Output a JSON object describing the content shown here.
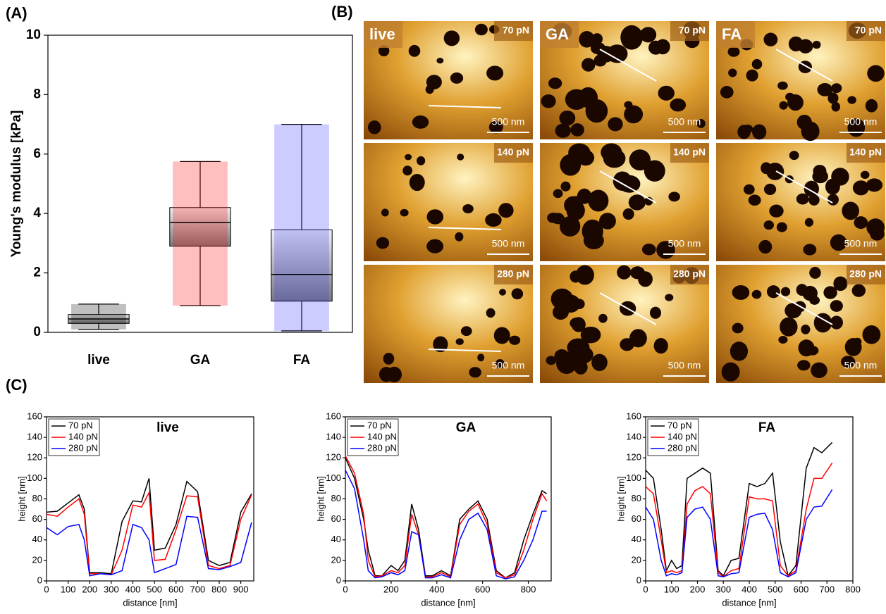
{
  "panel_labels": [
    "(A)",
    "(B)",
    "(C)"
  ],
  "images": {
    "columns": [
      "live",
      "GA",
      "FA"
    ],
    "forces": [
      "70 pN",
      "140 pN",
      "280 pN"
    ],
    "scale_bar": "500 nm"
  },
  "chart_data": [
    {
      "type": "box",
      "ylabel": "Young's modulus [kPa]",
      "categories": [
        "live",
        "GA",
        "FA"
      ],
      "boxes": [
        {
          "whisker_low": 0.1,
          "q1": 0.3,
          "median": 0.45,
          "q3": 0.6,
          "whisker_high": 0.95,
          "color": "#000000"
        },
        {
          "whisker_low": 0.9,
          "q1": 2.9,
          "median": 3.7,
          "q3": 4.2,
          "whisker_high": 5.75,
          "color": "#ff0000"
        },
        {
          "whisker_low": 0.05,
          "q1": 1.05,
          "median": 1.95,
          "q3": 3.45,
          "whisker_high": 7.0,
          "color": "#3333ff"
        }
      ],
      "ylim": [
        0,
        10
      ],
      "yticks": [
        0,
        2,
        4,
        6,
        8,
        10
      ]
    },
    {
      "type": "line",
      "title": "live",
      "xlabel": "distance [nm]",
      "ylabel": "height [nm]",
      "x": [
        0,
        50,
        100,
        150,
        175,
        200,
        250,
        300,
        350,
        400,
        440,
        475,
        500,
        550,
        600,
        650,
        700,
        750,
        800,
        850,
        900,
        950
      ],
      "series": [
        {
          "name": "70 pN",
          "color": "#000000",
          "values": [
            67,
            68,
            76,
            84,
            70,
            8,
            8,
            7,
            58,
            78,
            77,
            100,
            30,
            32,
            55,
            97,
            87,
            20,
            15,
            18,
            67,
            85
          ]
        },
        {
          "name": "140 pN",
          "color": "#ff0000",
          "values": [
            65,
            63,
            72,
            80,
            65,
            7,
            7,
            6,
            30,
            74,
            72,
            86,
            20,
            21,
            50,
            83,
            82,
            15,
            12,
            15,
            60,
            84
          ]
        },
        {
          "name": "280 pN",
          "color": "#0000ff",
          "values": [
            52,
            45,
            53,
            55,
            40,
            5,
            7,
            6,
            10,
            55,
            52,
            40,
            8,
            12,
            16,
            63,
            62,
            12,
            11,
            14,
            18,
            57
          ]
        }
      ],
      "xlim": [
        0,
        960
      ],
      "xticks": [
        0,
        100,
        200,
        300,
        400,
        500,
        600,
        700,
        800,
        900
      ],
      "ylim": [
        0,
        160
      ],
      "yticks": [
        0,
        20,
        40,
        60,
        80,
        100,
        120,
        140,
        160
      ]
    },
    {
      "type": "line",
      "title": "GA",
      "xlabel": "distance [nm]",
      "ylabel": "height [nm]",
      "x": [
        0,
        40,
        80,
        100,
        130,
        160,
        200,
        230,
        260,
        290,
        320,
        350,
        380,
        420,
        460,
        500,
        540,
        580,
        620,
        660,
        700,
        740,
        780,
        820,
        860,
        880
      ],
      "series": [
        {
          "name": "70 pN",
          "color": "#000000",
          "values": [
            120,
            100,
            60,
            30,
            5,
            5,
            15,
            10,
            20,
            75,
            50,
            5,
            5,
            10,
            5,
            60,
            70,
            78,
            60,
            10,
            3,
            8,
            40,
            65,
            88,
            85
          ]
        },
        {
          "name": "140 pN",
          "color": "#ff0000",
          "values": [
            122,
            105,
            65,
            20,
            4,
            5,
            10,
            8,
            15,
            65,
            45,
            4,
            4,
            8,
            4,
            55,
            68,
            75,
            55,
            8,
            3,
            6,
            30,
            60,
            85,
            78
          ]
        },
        {
          "name": "280 pN",
          "color": "#0000ff",
          "values": [
            108,
            90,
            40,
            10,
            3,
            4,
            8,
            6,
            10,
            48,
            45,
            3,
            3,
            6,
            3,
            40,
            60,
            66,
            50,
            5,
            2,
            4,
            20,
            40,
            68,
            68
          ]
        }
      ],
      "xlim": [
        0,
        900
      ],
      "xticks": [
        0,
        200,
        400,
        600,
        800
      ],
      "ylim": [
        0,
        160
      ],
      "yticks": [
        0,
        20,
        40,
        60,
        80,
        100,
        120,
        140,
        160
      ]
    },
    {
      "type": "line",
      "title": "FA",
      "xlabel": "distance [nm]",
      "ylabel": "height [nm]",
      "x": [
        0,
        30,
        60,
        80,
        100,
        120,
        140,
        160,
        190,
        220,
        250,
        280,
        300,
        330,
        360,
        400,
        430,
        460,
        490,
        520,
        550,
        580,
        620,
        650,
        680,
        720
      ],
      "series": [
        {
          "name": "70 pN",
          "color": "#000000",
          "values": [
            108,
            100,
            50,
            10,
            20,
            12,
            15,
            100,
            105,
            110,
            105,
            10,
            5,
            20,
            22,
            95,
            92,
            95,
            105,
            38,
            5,
            15,
            110,
            130,
            125,
            135
          ]
        },
        {
          "name": "140 pN",
          "color": "#ff0000",
          "values": [
            92,
            85,
            40,
            8,
            10,
            8,
            10,
            75,
            88,
            92,
            85,
            8,
            4,
            10,
            12,
            82,
            80,
            80,
            78,
            15,
            5,
            10,
            70,
            100,
            100,
            115
          ]
        },
        {
          "name": "280 pN",
          "color": "#0000ff",
          "values": [
            72,
            60,
            20,
            5,
            7,
            6,
            8,
            62,
            70,
            72,
            60,
            5,
            4,
            7,
            8,
            62,
            65,
            66,
            50,
            8,
            4,
            8,
            60,
            72,
            73,
            89
          ]
        }
      ],
      "xlim": [
        0,
        800
      ],
      "xticks": [
        0,
        100,
        200,
        300,
        400,
        500,
        600,
        700,
        800
      ],
      "ylim": [
        0,
        160
      ],
      "yticks": [
        0,
        20,
        40,
        60,
        80,
        100,
        120,
        140,
        160
      ]
    }
  ]
}
